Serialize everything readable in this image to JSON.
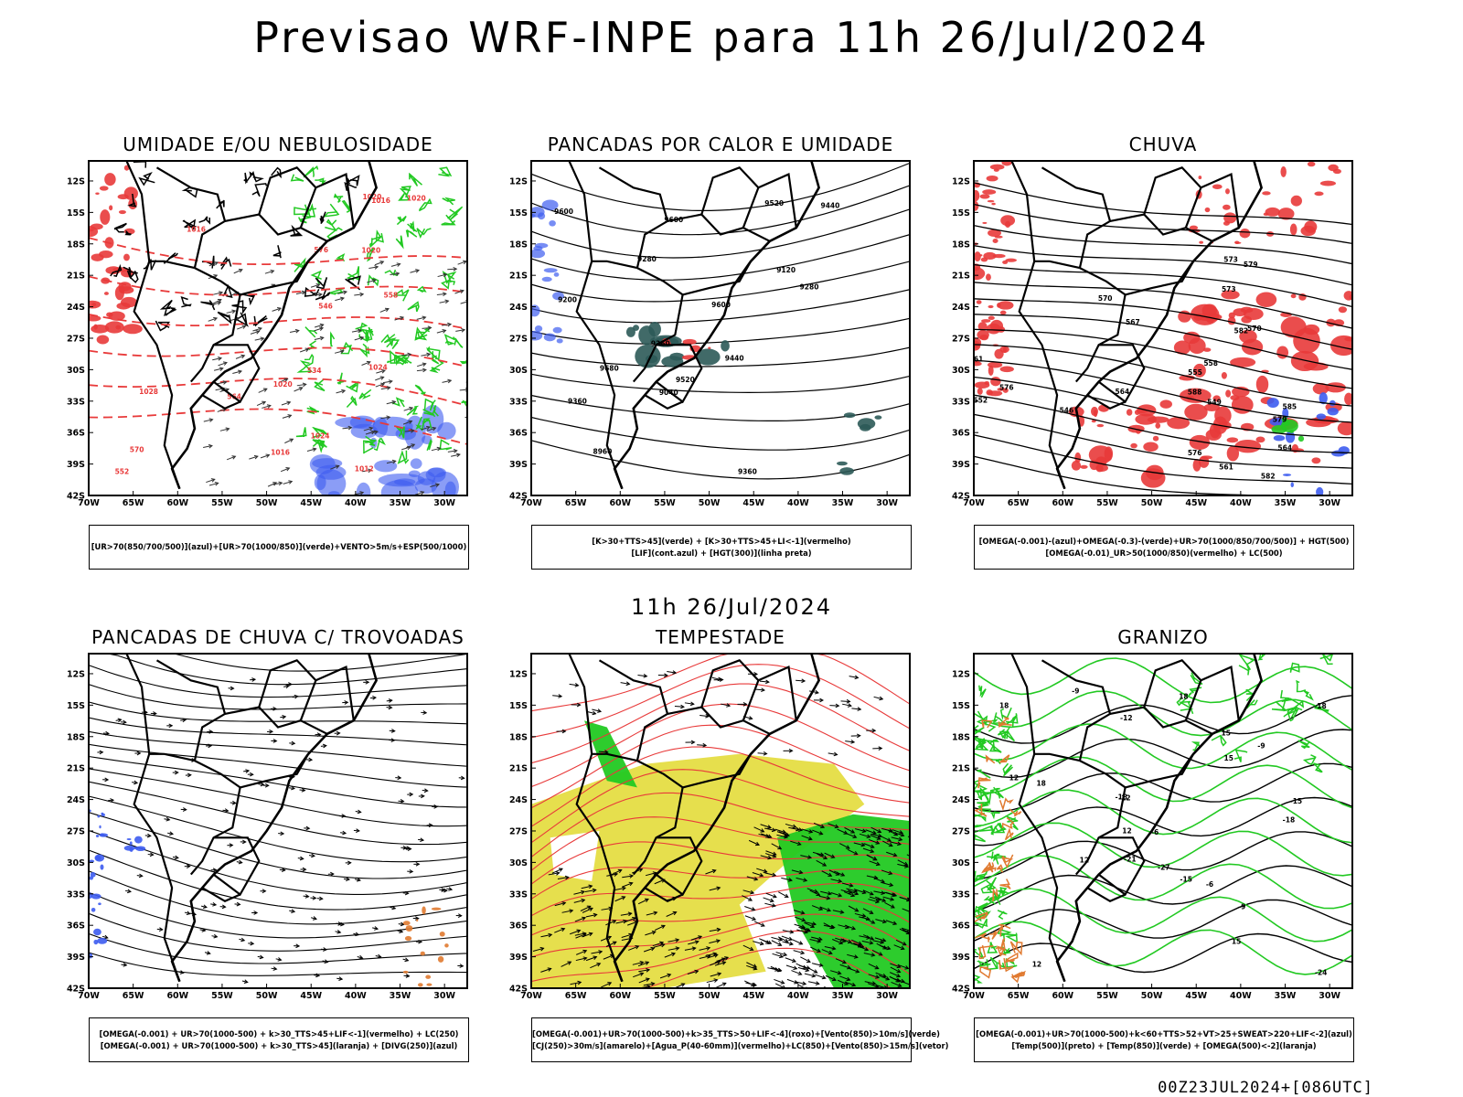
{
  "header": {
    "title": "Previsao WRF-INPE  para 11h 26/Jul/2024"
  },
  "subtitle": "11h 26/Jul/2024",
  "footer": "00Z23JUL2024+[086UTC]",
  "axes": {
    "lat_labels": [
      "12S",
      "15S",
      "18S",
      "21S",
      "24S",
      "27S",
      "30S",
      "33S",
      "36S",
      "39S",
      "42S"
    ],
    "lon_labels": [
      "70W",
      "65W",
      "60W",
      "55W",
      "50W",
      "45W",
      "40W",
      "35W",
      "30W"
    ]
  },
  "colors": {
    "red": "#e83a3a",
    "green": "#22c922",
    "blue": "#3d5cf0",
    "yellow": "#e3dc3a",
    "teal": "#2c5a58",
    "orange": "#e07a30"
  },
  "panels": [
    {
      "id": "umidade",
      "title": "UMIDADE E/OU NEBULOSIDADE",
      "legend": [
        "[UR>70(850/700/500)](azul)+[UR>70(1000/850)](verde)+VENTO>5m/s+ESP(500/1000)"
      ],
      "contour_labels": [
        "1016",
        "1016",
        "1020",
        "1024",
        "1020",
        "1016",
        "1020",
        "1012",
        "1024",
        "1028",
        "1020",
        "576",
        "570",
        "564",
        "558",
        "552",
        "546",
        "534"
      ]
    },
    {
      "id": "pancadas-calor",
      "title": "PANCADAS POR CALOR E UMIDADE",
      "legend": [
        "[K>30+TTS>45](verde) + [K>30+TTS>45+LI<-1](vermelho)",
        "[LIF](cont.azul) + [HGT(300)](linha preta)"
      ],
      "contour_labels": [
        "9680",
        "9600",
        "9520",
        "9600",
        "9600",
        "9520",
        "9440",
        "9360",
        "9440",
        "9360",
        "9280",
        "9360",
        "9200",
        "9120",
        "9280",
        "9040",
        "8960"
      ]
    },
    {
      "id": "chuva",
      "title": "CHUVA",
      "legend": [
        "[OMEGA(-0.001)-(azul)+OMEGA(-0.3)-(verde)+UR>70(1000/850/700/500)] + HGT(500)",
        "[OMEGA(-0.01)_UR>50(1000/850)(vermelho) + LC(500)"
      ],
      "contour_labels": [
        "588",
        "585",
        "582",
        "579",
        "576",
        "573",
        "570",
        "567",
        "564",
        "561",
        "558",
        "555",
        "552",
        "549",
        "546",
        "582",
        "579",
        "576",
        "573",
        "570",
        "564",
        "561"
      ]
    },
    {
      "id": "trovoadas",
      "title": "PANCADAS DE CHUVA C/ TROVOADAS",
      "legend": [
        "[OMEGA(-0.001) + UR>70(1000-500) + k>30_TTS>45+LIF<-1](vermelho) + LC(250)",
        "[OMEGA(-0.001) + UR>70(1000-500) + k>30_TTS>45](laranja) + [DIVG(250)](azul)"
      ],
      "contour_labels": []
    },
    {
      "id": "tempestade",
      "title": "TEMPESTADE",
      "legend": [
        "[OMEGA(-0.001)+UR>70(1000-500)+k>35_TTS>50+LIF<-4](roxo)+[Vento(850)>10m/s](verde)",
        "[CJ(250)>30m/s](amarelo)+[Agua_P(40-60mm)](vermelho)+LC(850)+[Vento(850)>15m/s](vetor)"
      ],
      "contour_labels": []
    },
    {
      "id": "granizo",
      "title": "GRANIZO",
      "legend": [
        "[OMEGA(-0.001)+UR>70(1000-500)+k<60+TTS>52+VT>25+SWEAT>220+LIF<-2](azul)",
        "[Temp(500)](preto) + [Temp(850)](verde) + [OMEGA(500)<-2](laranja)"
      ],
      "contour_labels": [
        "-9",
        "-6",
        "-12",
        "-9",
        "-12",
        "-15",
        "-18",
        "-21",
        "-24",
        "-27",
        "-18",
        "-15",
        "-18",
        "12",
        "15",
        "18",
        "12",
        "15",
        "12",
        "18",
        "12",
        "18",
        "15",
        "-9",
        "-6"
      ]
    }
  ]
}
